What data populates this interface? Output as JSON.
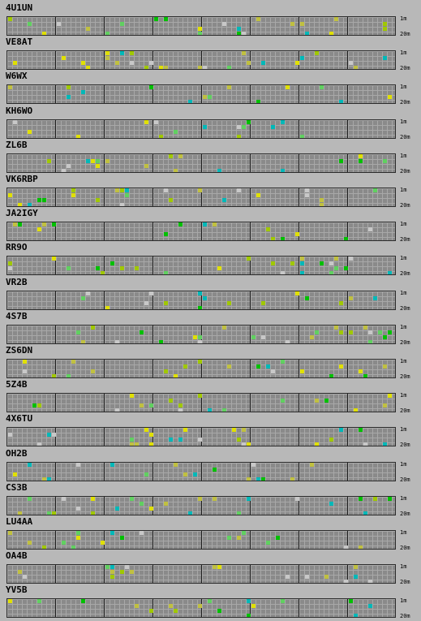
{
  "colors": {
    "background": "#b8b8b8",
    "grid": "#8a8a8a",
    "gridline": "#a8a8a8",
    "major_divider": "#1e1e1e",
    "activity_palette": [
      "#00c000",
      "#00b8b8",
      "#e0e000",
      "#a0c800",
      "#c8c8c8",
      "#60d060",
      "#c0c040"
    ]
  },
  "band_labels": {
    "top": "1m",
    "bottom": "20m"
  },
  "stations": [
    {
      "call": "4U1UN"
    },
    {
      "call": "VE8AT"
    },
    {
      "call": "W6WX"
    },
    {
      "call": "KH6WO"
    },
    {
      "call": "ZL6B"
    },
    {
      "call": "VK6RBP"
    },
    {
      "call": "JA2IGY"
    },
    {
      "call": "RR9O"
    },
    {
      "call": "VR2B"
    },
    {
      "call": "4S7B"
    },
    {
      "call": "ZS6DN"
    },
    {
      "call": "5Z4B"
    },
    {
      "call": "4X6TU"
    },
    {
      "call": "OH2B"
    },
    {
      "call": "CS3B"
    },
    {
      "call": "LU4AA"
    },
    {
      "call": "OA4B"
    },
    {
      "call": "YV5B"
    }
  ]
}
